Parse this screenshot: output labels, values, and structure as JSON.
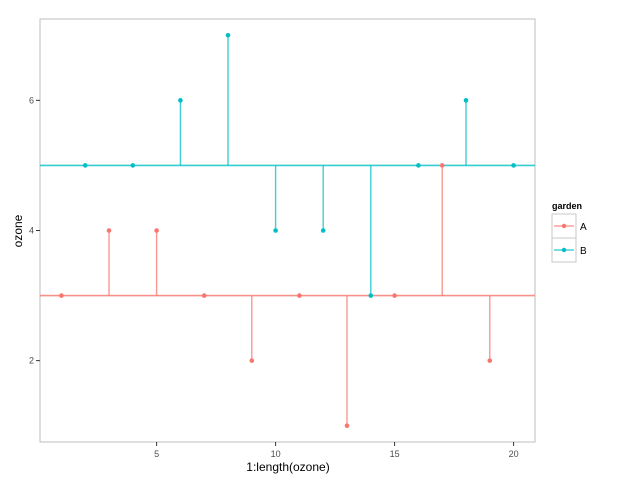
{
  "chart_data": {
    "type": "scatter",
    "subtype": "lollipop / residual plot with group mean lines",
    "title": "",
    "xlabel": "1:length(ozone)",
    "ylabel": "ozone",
    "xlim": [
      0.1,
      20.9
    ],
    "ylim": [
      0.75,
      7.25
    ],
    "xticks": [
      5,
      10,
      15,
      20
    ],
    "yticks": [
      2,
      4,
      6
    ],
    "grid": false,
    "legend": {
      "title": "garden",
      "position": "right",
      "entries": [
        "A",
        "B"
      ]
    },
    "series": [
      {
        "name": "A",
        "color": "#F8766D",
        "mean": 3,
        "x": [
          1,
          3,
          5,
          7,
          9,
          11,
          13,
          15,
          17,
          19
        ],
        "y": [
          3,
          4,
          4,
          3,
          2,
          3,
          1,
          3,
          5,
          2
        ]
      },
      {
        "name": "B",
        "color": "#00BFC4",
        "mean": 5,
        "x": [
          2,
          4,
          6,
          8,
          10,
          12,
          14,
          16,
          18,
          20
        ],
        "y": [
          5,
          5,
          6,
          7,
          4,
          4,
          3,
          5,
          6,
          5
        ]
      }
    ]
  },
  "axes": {
    "x_title": "1:length(ozone)",
    "y_title": "ozone",
    "x_tick_labels": [
      "5",
      "10",
      "15",
      "20"
    ],
    "y_tick_labels": [
      "2",
      "4",
      "6"
    ]
  },
  "legend": {
    "title": "garden",
    "items": [
      {
        "label": "A",
        "color": "#F8766D"
      },
      {
        "label": "B",
        "color": "#00BFC4"
      }
    ]
  }
}
